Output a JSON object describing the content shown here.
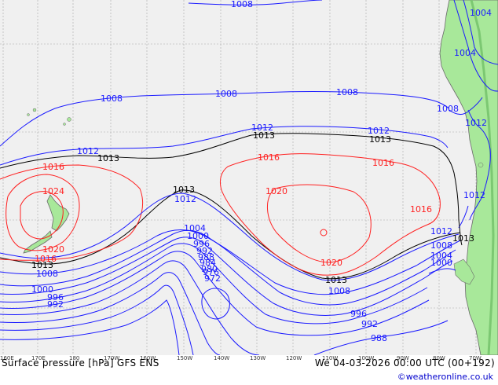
{
  "title": "Surface pressure [hPa] GFS ENS",
  "timestamp": "We 04-03-2026 00:00 UTC (00+192)",
  "credit": "©weatheronline.co.uk",
  "longitude_labels": [
    "160E",
    "170E",
    "180",
    "170W",
    "160W",
    "150W",
    "140W",
    "130W",
    "120W",
    "110W",
    "100W",
    "90W",
    "80W",
    "70W"
  ],
  "colors": {
    "ocean": "#f0f0f0",
    "land": "#a8e89a",
    "land_outline": "#6a6a6a",
    "grid": "#a0a0a0",
    "low": "#1a1aff",
    "mid": "#000000",
    "high": "#ff2020"
  },
  "isobar_labels": {
    "l1008a": "1008",
    "l1008b": "1008",
    "l1008c": "1008",
    "l1008d": "1008",
    "l1008e": "1008",
    "l1004a": "1004",
    "l1004b": "1004",
    "l1012a": "1012",
    "l1012b": "1012",
    "l1012c": "1012",
    "l1012d": "1012",
    "l1012e": "1012",
    "l1012f": "1012",
    "l1013a": "1013",
    "l1013b": "1013",
    "l1013c": "1013",
    "l1013d": "1013",
    "l1013e": "1013",
    "l1013f": "1013",
    "l1013g": "1013",
    "l1016a": "1016",
    "l1016b": "1016",
    "l1016c": "1016",
    "l1016d": "1016",
    "l1016e": "1016",
    "l1020a": "1020",
    "l1020b": "1020",
    "l1020c": "1020",
    "l1024a": "1024",
    "l1012g": "1012",
    "l1008f": "1008",
    "l1008g": "1008",
    "l1004c": "1004",
    "l1004d": "1004",
    "l1000a": "1000",
    "l1000b": "1000",
    "l1000c": "1000",
    "l996a": "996",
    "l996b": "996",
    "l996c": "996",
    "l992a": "992",
    "l992b": "992",
    "l992c": "992",
    "l988a": "988",
    "l988b": "988",
    "l984a": "984",
    "l980a": "980",
    "l976a": "976",
    "l972a": "972"
  }
}
